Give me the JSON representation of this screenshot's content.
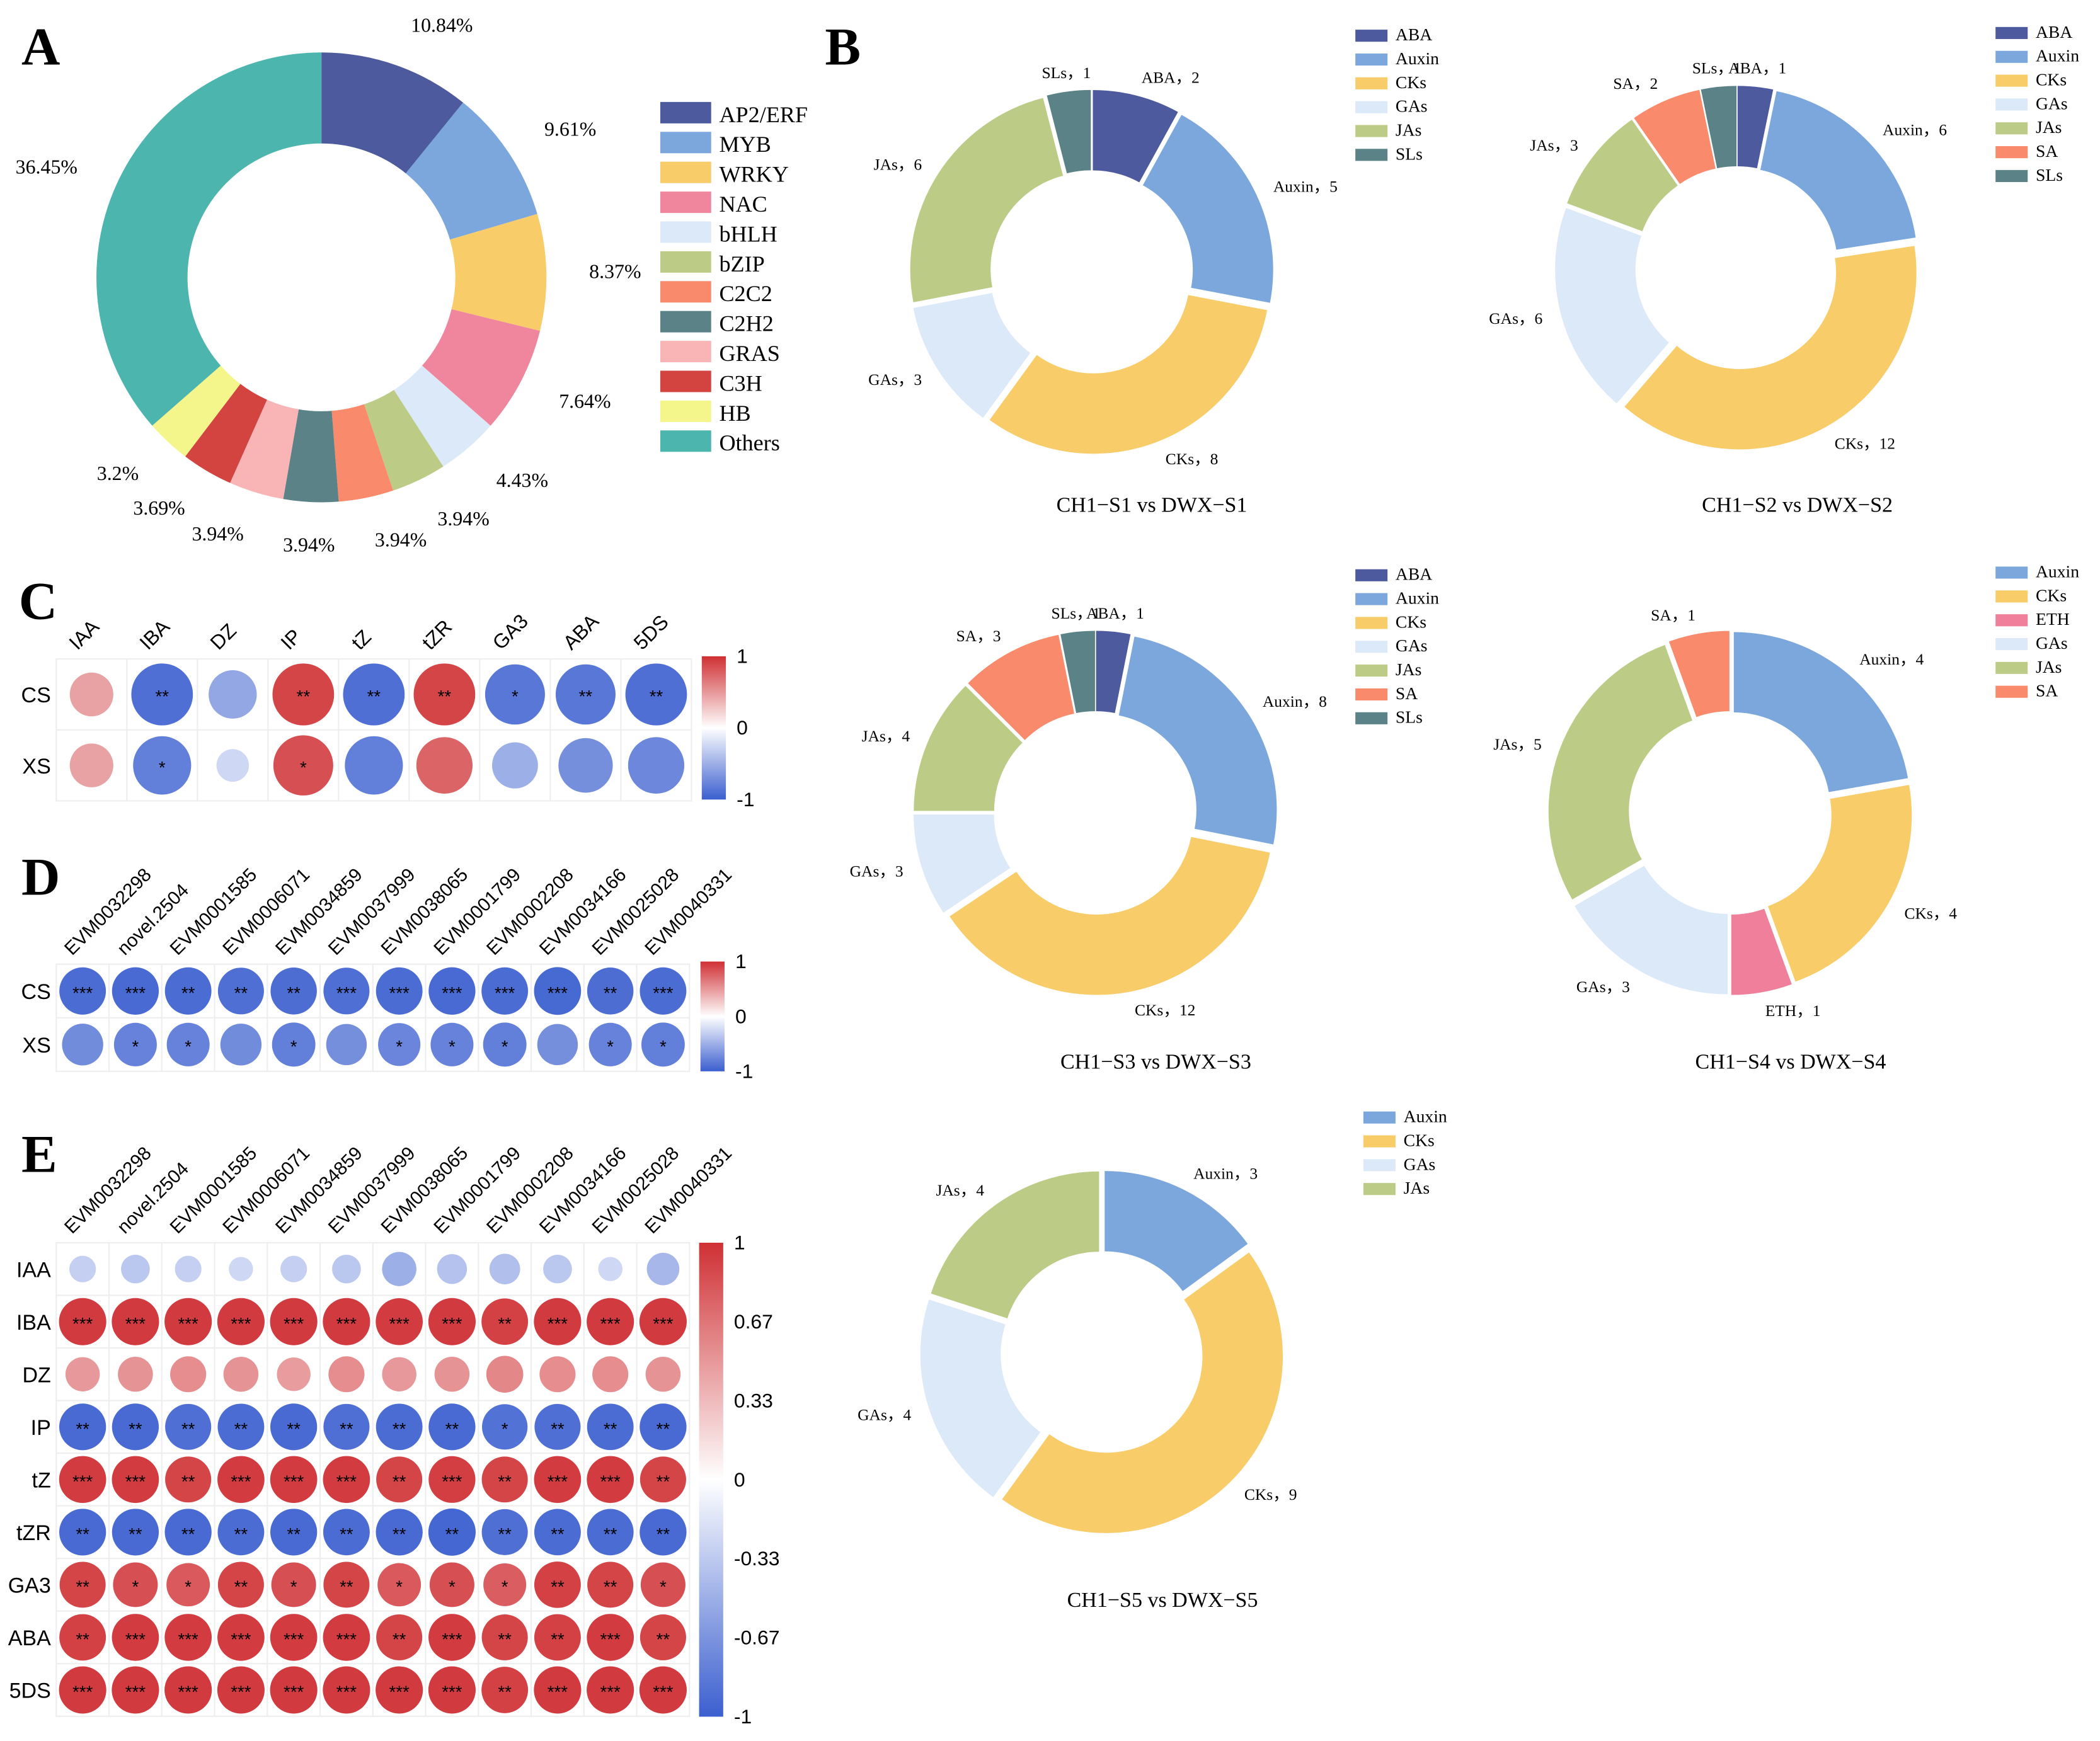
{
  "panels": {
    "A": "A",
    "B": "B",
    "C": "C",
    "D": "D",
    "E": "E"
  },
  "chart_data": [
    {
      "id": "A",
      "type": "pie",
      "donut": true,
      "title": "",
      "categories": [
        "AP2/ERF",
        "MYB",
        "WRKY",
        "NAC",
        "bHLH",
        "bZIP",
        "C2C2",
        "C2H2",
        "GRAS",
        "C3H",
        "HB",
        "Others"
      ],
      "values": [
        10.84,
        9.61,
        8.37,
        7.64,
        4.43,
        3.94,
        3.94,
        3.94,
        3.94,
        3.69,
        3.2,
        36.45
      ],
      "labels": [
        "10.84%",
        "9.61%",
        "8.37%",
        "7.64%",
        "4.43%",
        "3.94%",
        "3.94%",
        "3.94%",
        "3.94%",
        "3.69%",
        "3.2%",
        "36.45%"
      ],
      "colors": [
        "#4e5a9e",
        "#7ba7dd",
        "#f9cc6a",
        "#ef869e",
        "#dce9f8",
        "#bccc86",
        "#f98a6c",
        "#5b8287",
        "#f9b5b5",
        "#d3433f",
        "#f4f58a",
        "#4bb5ae"
      ],
      "legend": "right"
    },
    {
      "id": "B1",
      "type": "pie",
      "donut": true,
      "title": "CH1−S1 vs DWX−S1",
      "categories": [
        "ABA",
        "Auxin",
        "CKs",
        "GAs",
        "JAs",
        "SLs"
      ],
      "values": [
        2,
        5,
        8,
        3,
        6,
        1
      ],
      "colors": [
        "#4e5a9e",
        "#7ba7dd",
        "#f9cc6a",
        "#dce9f8",
        "#bccc86",
        "#5b8287"
      ],
      "legend": "top-right"
    },
    {
      "id": "B2",
      "type": "pie",
      "donut": true,
      "title": "CH1−S2 vs DWX−S2",
      "categories": [
        "ABA",
        "Auxin",
        "CKs",
        "GAs",
        "JAs",
        "SA",
        "SLs"
      ],
      "values": [
        1,
        6,
        12,
        6,
        3,
        2,
        1
      ],
      "colors": [
        "#4e5a9e",
        "#7ba7dd",
        "#f9cc6a",
        "#dce9f8",
        "#bccc86",
        "#f98a6c",
        "#5b8287"
      ],
      "legend": "top-right"
    },
    {
      "id": "B3",
      "type": "pie",
      "donut": true,
      "title": "CH1−S3 vs DWX−S3",
      "categories": [
        "ABA",
        "Auxin",
        "CKs",
        "GAs",
        "JAs",
        "SA",
        "SLs"
      ],
      "values": [
        1,
        8,
        12,
        3,
        4,
        3,
        1
      ],
      "colors": [
        "#4e5a9e",
        "#7ba7dd",
        "#f9cc6a",
        "#dce9f8",
        "#bccc86",
        "#f98a6c",
        "#5b8287"
      ],
      "legend": "top-right"
    },
    {
      "id": "B4",
      "type": "pie",
      "donut": true,
      "title": "CH1−S4 vs DWX−S4",
      "categories": [
        "Auxin",
        "CKs",
        "ETH",
        "GAs",
        "JAs",
        "SA"
      ],
      "values": [
        4,
        4,
        1,
        3,
        5,
        1
      ],
      "colors": [
        "#7ba7dd",
        "#f9cc6a",
        "#ef7f9a",
        "#dce9f8",
        "#bccc86",
        "#f98a6c"
      ],
      "legend": "top-right"
    },
    {
      "id": "B5",
      "type": "pie",
      "donut": true,
      "title": "CH1−S5 vs DWX−S5",
      "categories": [
        "Auxin",
        "CKs",
        "GAs",
        "JAs"
      ],
      "values": [
        3,
        9,
        4,
        4
      ],
      "colors": [
        "#7ba7dd",
        "#f9cc6a",
        "#dce9f8",
        "#bccc86"
      ],
      "legend": "top-right"
    },
    {
      "id": "C",
      "type": "heatmap",
      "style": "corrplot-circle",
      "columns": [
        "IAA",
        "IBA",
        "DZ",
        "IP",
        "tZ",
        "tZR",
        "GA3",
        "ABA",
        "5DS"
      ],
      "rows": [
        "CS",
        "XS"
      ],
      "values": [
        [
          0.45,
          -0.9,
          -0.55,
          0.9,
          -0.9,
          0.9,
          -0.85,
          -0.85,
          -0.9
        ],
        [
          0.45,
          -0.8,
          -0.25,
          0.85,
          -0.8,
          0.75,
          -0.5,
          -0.7,
          -0.75
        ]
      ],
      "stars": [
        [
          "",
          "**",
          "",
          "**",
          "**",
          "**",
          "*",
          "**",
          "**"
        ],
        [
          "",
          "*",
          "",
          "*",
          "",
          "",
          "",
          "",
          ""
        ]
      ],
      "colorbar_ticks": [
        "1",
        "0",
        "-1"
      ],
      "range": [
        -1,
        1
      ]
    },
    {
      "id": "D",
      "type": "heatmap",
      "style": "corrplot-circle",
      "columns": [
        "EVM0032298",
        "novel.2504",
        "EVM0001585",
        "EVM0006071",
        "EVM0034859",
        "EVM0037999",
        "EVM0038065",
        "EVM0001799",
        "EVM0002208",
        "EVM0034166",
        "EVM0025028",
        "EVM0040331"
      ],
      "rows": [
        "CS",
        "XS"
      ],
      "values": [
        [
          -0.92,
          -0.93,
          -0.92,
          -0.9,
          -0.91,
          -0.9,
          -0.92,
          -0.93,
          -0.92,
          -0.94,
          -0.91,
          -0.92
        ],
        [
          -0.72,
          -0.78,
          -0.78,
          -0.72,
          -0.8,
          -0.7,
          -0.76,
          -0.78,
          -0.8,
          -0.7,
          -0.78,
          -0.8
        ]
      ],
      "stars": [
        [
          "***",
          "***",
          "**",
          "**",
          "**",
          "***",
          "***",
          "***",
          "***",
          "***",
          "**",
          "***"
        ],
        [
          "",
          "*",
          "*",
          "",
          "*",
          "",
          "*",
          "*",
          "*",
          "",
          "*",
          "*"
        ]
      ],
      "colorbar_ticks": [
        "1",
        "0",
        "-1"
      ],
      "range": [
        -1,
        1
      ]
    },
    {
      "id": "E",
      "type": "heatmap",
      "style": "corrplot-circle",
      "columns": [
        "EVM0032298",
        "novel.2504",
        "EVM0001585",
        "EVM0006071",
        "EVM0034859",
        "EVM0037999",
        "EVM0038065",
        "EVM0001799",
        "EVM0002208",
        "EVM0034166",
        "EVM0025028",
        "EVM0040331"
      ],
      "rows": [
        "IAA",
        "IBA",
        "DZ",
        "IP",
        "tZ",
        "tZR",
        "GA3",
        "ABA",
        "5DS"
      ],
      "values": [
        [
          -0.3,
          -0.35,
          -0.3,
          -0.25,
          -0.3,
          -0.35,
          -0.5,
          -0.38,
          -0.4,
          -0.35,
          -0.25,
          -0.45
        ],
        [
          0.95,
          0.95,
          0.95,
          0.95,
          0.95,
          0.95,
          0.94,
          0.95,
          0.92,
          0.95,
          0.95,
          0.95
        ],
        [
          0.5,
          0.52,
          0.55,
          0.52,
          0.48,
          0.55,
          0.5,
          0.52,
          0.58,
          0.55,
          0.55,
          0.52
        ],
        [
          -0.93,
          -0.93,
          -0.9,
          -0.92,
          -0.93,
          -0.9,
          -0.92,
          -0.93,
          -0.88,
          -0.9,
          -0.92,
          -0.93
        ],
        [
          0.94,
          0.94,
          0.9,
          0.94,
          0.94,
          0.94,
          0.9,
          0.93,
          0.9,
          0.94,
          0.94,
          0.9
        ],
        [
          -0.93,
          -0.93,
          -0.93,
          -0.92,
          -0.93,
          -0.92,
          -0.93,
          -0.95,
          -0.9,
          -0.92,
          -0.92,
          -0.93
        ],
        [
          0.9,
          0.85,
          0.8,
          0.9,
          0.85,
          0.9,
          0.8,
          0.85,
          0.78,
          0.92,
          0.9,
          0.85
        ],
        [
          0.92,
          0.94,
          0.94,
          0.94,
          0.94,
          0.94,
          0.9,
          0.94,
          0.9,
          0.92,
          0.94,
          0.9
        ],
        [
          0.95,
          0.95,
          0.95,
          0.95,
          0.95,
          0.95,
          0.95,
          0.95,
          0.92,
          0.95,
          0.95,
          0.95
        ]
      ],
      "stars": [
        [
          "",
          "",
          "",
          "",
          "",
          "",
          "",
          "",
          "",
          "",
          "",
          ""
        ],
        [
          "***",
          "***",
          "***",
          "***",
          "***",
          "***",
          "***",
          "***",
          "**",
          "***",
          "***",
          "***"
        ],
        [
          "",
          "",
          "",
          "",
          "",
          "",
          "",
          "",
          "",
          "",
          "",
          ""
        ],
        [
          "**",
          "**",
          "**",
          "**",
          "**",
          "**",
          "**",
          "**",
          "*",
          "**",
          "**",
          "**"
        ],
        [
          "***",
          "***",
          "**",
          "***",
          "***",
          "***",
          "**",
          "***",
          "**",
          "***",
          "***",
          "**"
        ],
        [
          "**",
          "**",
          "**",
          "**",
          "**",
          "**",
          "**",
          "**",
          "**",
          "**",
          "**",
          "**"
        ],
        [
          "**",
          "*",
          "*",
          "**",
          "*",
          "**",
          "*",
          "*",
          "*",
          "**",
          "**",
          "*"
        ],
        [
          "**",
          "***",
          "***",
          "***",
          "***",
          "***",
          "**",
          "***",
          "**",
          "**",
          "***",
          "**"
        ],
        [
          "***",
          "***",
          "***",
          "***",
          "***",
          "***",
          "***",
          "***",
          "**",
          "***",
          "***",
          "***"
        ]
      ],
      "colorbar_ticks": [
        "1",
        "0.67",
        "0.33",
        "0",
        "-0.33",
        "-0.67",
        "-1"
      ],
      "range": [
        -1,
        1
      ]
    }
  ],
  "colors": {
    "neg": "#3b5fcf",
    "zero": "#ffffff",
    "pos": "#cf3034"
  }
}
